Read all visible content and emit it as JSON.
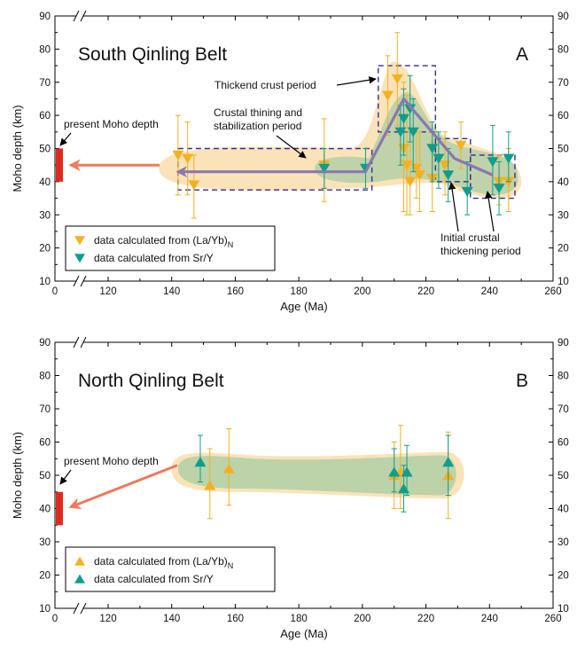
{
  "colors": {
    "yellow": "#f2b124",
    "teal": "#0f9d8c",
    "envelope_fill": "#fae3b8",
    "envelope_green": "#b5cfa7",
    "trend": "#8878b0",
    "box_stroke": "#3a2a8c",
    "present_bar": "#e02a20",
    "arrow": "#ee7a5c"
  },
  "chart_data": [
    {
      "type": "scatter",
      "panel": "A",
      "title": "South Qinling Belt",
      "panel_letter": "A",
      "xlabel": "Age (Ma)",
      "ylabel": "Moho depth (km)",
      "xlim": [
        0,
        260
      ],
      "axis_break": [
        20,
        100
      ],
      "ylim": [
        10,
        90
      ],
      "x_ticks": [
        0,
        120,
        140,
        160,
        180,
        200,
        220,
        240,
        260
      ],
      "x_tick_labels": [
        "0",
        "120",
        "140",
        "160",
        "180",
        "200",
        "220",
        "240",
        "260"
      ],
      "y_ticks": [
        10,
        20,
        30,
        40,
        50,
        60,
        70,
        80,
        90
      ],
      "y_tick_labels": [
        "10",
        "20",
        "30",
        "40",
        "50",
        "60",
        "70",
        "80",
        "90"
      ],
      "legend": [
        {
          "label": "data calculated from (La/Yb)",
          "subscript": "N",
          "marker": "triangle-down",
          "color": "yellow"
        },
        {
          "label": "data calculated from Sr/Y",
          "marker": "triangle-down",
          "color": "teal"
        }
      ],
      "present_moho": {
        "label": "present Moho depth",
        "ymin": 40,
        "ymax": 50
      },
      "annotations": [
        {
          "text": "Thickend crust period"
        },
        {
          "text": "Crustal thining and",
          "text2": "stabilization period"
        },
        {
          "text": "Initial crustal",
          "text2": "thickening period"
        }
      ],
      "periods": [
        {
          "x0": 142,
          "x1": 203,
          "y0": 37.5,
          "y1": 50
        },
        {
          "x0": 205,
          "x1": 223,
          "y0": 55,
          "y1": 75
        },
        {
          "x0": 223,
          "x1": 234,
          "y0": 40,
          "y1": 53
        },
        {
          "x0": 234,
          "x1": 248,
          "y0": 35,
          "y1": 48
        }
      ],
      "trend_line": {
        "x": [
          142,
          201,
          213,
          229,
          241
        ],
        "y": [
          43,
          43,
          65,
          47,
          42
        ]
      },
      "series": [
        {
          "name": "data calculated from (La/Yb)N",
          "color": "yellow",
          "marker": "triangle-down",
          "points": [
            {
              "x": 142,
              "y": 48,
              "lo": 36,
              "hi": 60
            },
            {
              "x": 145,
              "y": 47,
              "lo": 36,
              "hi": 58
            },
            {
              "x": 147,
              "y": 39,
              "lo": 29,
              "hi": 48
            },
            {
              "x": 188,
              "y": 45,
              "lo": 34,
              "hi": 59
            },
            {
              "x": 208,
              "y": 66,
              "lo": 54,
              "hi": 78
            },
            {
              "x": 211,
              "y": 71,
              "lo": 57,
              "hi": 85
            },
            {
              "x": 213,
              "y": 50,
              "lo": 31,
              "hi": 70
            },
            {
              "x": 214,
              "y": 45,
              "lo": 30,
              "hi": 66
            },
            {
              "x": 215,
              "y": 40,
              "lo": 30,
              "hi": 52
            },
            {
              "x": 217,
              "y": 44,
              "lo": 35,
              "hi": 56
            },
            {
              "x": 218,
              "y": 42,
              "lo": 31,
              "hi": 55
            },
            {
              "x": 222,
              "y": 41,
              "lo": 31,
              "hi": 52
            },
            {
              "x": 226,
              "y": 45,
              "lo": 36,
              "hi": 55
            },
            {
              "x": 231,
              "y": 51,
              "lo": 44,
              "hi": 58
            },
            {
              "x": 243,
              "y": 40,
              "lo": 33,
              "hi": 48
            },
            {
              "x": 246,
              "y": 40,
              "lo": 31,
              "hi": 50
            }
          ]
        },
        {
          "name": "data calculated from Sr/Y",
          "color": "teal",
          "marker": "triangle-down",
          "points": [
            {
              "x": 188,
              "y": 44,
              "lo": 38,
              "hi": 50
            },
            {
              "x": 201,
              "y": 44,
              "lo": 38,
              "hi": 50
            },
            {
              "x": 212,
              "y": 55,
              "lo": 45,
              "hi": 63
            },
            {
              "x": 213,
              "y": 59,
              "lo": 48,
              "hi": 68
            },
            {
              "x": 215,
              "y": 62,
              "lo": 52,
              "hi": 72
            },
            {
              "x": 216,
              "y": 55,
              "lo": 43,
              "hi": 65
            },
            {
              "x": 222,
              "y": 50,
              "lo": 40,
              "hi": 58
            },
            {
              "x": 224,
              "y": 47,
              "lo": 38,
              "hi": 55
            },
            {
              "x": 227,
              "y": 42,
              "lo": 34,
              "hi": 50
            },
            {
              "x": 233,
              "y": 37,
              "lo": 30,
              "hi": 46
            },
            {
              "x": 241,
              "y": 46,
              "lo": 36,
              "hi": 57
            },
            {
              "x": 243,
              "y": 38,
              "lo": 30,
              "hi": 46
            },
            {
              "x": 246,
              "y": 47,
              "lo": 40,
              "hi": 55
            }
          ]
        }
      ]
    },
    {
      "type": "scatter",
      "panel": "B",
      "title": "North Qinling Belt",
      "panel_letter": "B",
      "xlabel": "Age (Ma)",
      "ylabel": "Moho depth (km)",
      "xlim": [
        0,
        260
      ],
      "axis_break": [
        20,
        100
      ],
      "ylim": [
        10,
        90
      ],
      "x_ticks": [
        0,
        120,
        140,
        160,
        180,
        200,
        220,
        240,
        260
      ],
      "x_tick_labels": [
        "0",
        "120",
        "140",
        "160",
        "180",
        "200",
        "220",
        "240",
        "260"
      ],
      "y_ticks": [
        10,
        20,
        30,
        40,
        50,
        60,
        70,
        80,
        90
      ],
      "y_tick_labels": [
        "10",
        "20",
        "30",
        "40",
        "50",
        "60",
        "70",
        "80",
        "90"
      ],
      "legend": [
        {
          "label": "data calculated from (La/Yb)",
          "subscript": "N",
          "marker": "triangle-up",
          "color": "yellow"
        },
        {
          "label": "data calculated from Sr/Y",
          "marker": "triangle-up",
          "color": "teal"
        }
      ],
      "present_moho": {
        "label": "present Moho depth",
        "ymin": 35,
        "ymax": 45
      },
      "series": [
        {
          "name": "data calculated from (La/Yb)N",
          "color": "yellow",
          "marker": "triangle-up",
          "points": [
            {
              "x": 152,
              "y": 47,
              "lo": 37,
              "hi": 58
            },
            {
              "x": 158,
              "y": 52,
              "lo": 41,
              "hi": 64
            },
            {
              "x": 210,
              "y": 50,
              "lo": 40,
              "hi": 60
            },
            {
              "x": 212,
              "y": 51,
              "lo": 40,
              "hi": 65
            },
            {
              "x": 227,
              "y": 50,
              "lo": 37,
              "hi": 63
            }
          ]
        },
        {
          "name": "data calculated from Sr/Y",
          "color": "teal",
          "marker": "triangle-up",
          "points": [
            {
              "x": 149,
              "y": 54,
              "lo": 48,
              "hi": 62
            },
            {
              "x": 210,
              "y": 51,
              "lo": 45,
              "hi": 58
            },
            {
              "x": 213,
              "y": 46,
              "lo": 39,
              "hi": 53
            },
            {
              "x": 214,
              "y": 51,
              "lo": 44,
              "hi": 59
            },
            {
              "x": 227,
              "y": 54,
              "lo": 44,
              "hi": 62
            }
          ]
        }
      ]
    }
  ]
}
